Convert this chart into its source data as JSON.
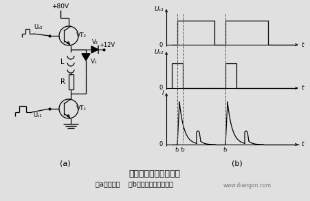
{
  "title_main": "高低压切换型驱动线路",
  "title_sub": "（a）原理图    （b）电压、电流波形图",
  "watermark": "www.diangon.com",
  "bg_color": "#e0e0e0",
  "label_a": "(a)",
  "label_b": "(b)",
  "plus80v": "+80V",
  "plus12v": "+12V",
  "vt2_label": "VT₂",
  "vt1_label": "VT₁",
  "v1_label": "V₁",
  "v2_label": "V₂",
  "L_label": "L",
  "R_label": "R",
  "ub2_label": "Uₛ₂",
  "ub1_label": "Uₛ₁",
  "wf_ub1": "Uₛ₁",
  "wf_ub2": "Uₛ₂",
  "wf_I": "I",
  "wf_t": "t",
  "wf_t1": "t₁",
  "wf_t2": "t₂",
  "wf_t3": "t₃"
}
